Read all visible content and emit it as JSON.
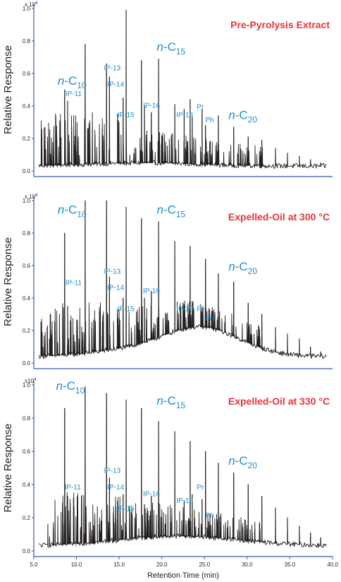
{
  "chart_data": [
    {
      "type": "line",
      "title": "Pre-Pyrolysis Extract",
      "ylabel": "Relative Response",
      "y_exponent": "x 10",
      "y_exponent_power": "4",
      "ylim": [
        0.0,
        1.0
      ],
      "y_ticks": [
        "0.0",
        "0.2",
        "0.4",
        "0.6",
        "0.8",
        "1.0"
      ],
      "xlim": [
        5.0,
        40.0
      ],
      "title_color": "#e8343b",
      "trace_color": "#231f20",
      "annotation_color": "#1f8dd0",
      "peaks": [
        {
          "x": 8.6,
          "y": 0.5
        },
        {
          "x": 8.95,
          "y": 0.43
        },
        {
          "x": 11.0,
          "y": 0.78
        },
        {
          "x": 13.5,
          "y": 0.66
        },
        {
          "x": 13.85,
          "y": 0.58
        },
        {
          "x": 14.8,
          "y": 0.35
        },
        {
          "x": 15.45,
          "y": 0.45
        },
        {
          "x": 15.8,
          "y": 0.99
        },
        {
          "x": 17.6,
          "y": 0.68
        },
        {
          "x": 17.95,
          "y": 0.4
        },
        {
          "x": 18.75,
          "y": 0.36
        },
        {
          "x": 19.6,
          "y": 0.69
        },
        {
          "x": 21.5,
          "y": 0.41
        },
        {
          "x": 22.6,
          "y": 0.38
        },
        {
          "x": 23.3,
          "y": 0.44
        },
        {
          "x": 23.55,
          "y": 0.33
        },
        {
          "x": 24.7,
          "y": 0.38
        },
        {
          "x": 25.1,
          "y": 0.28
        },
        {
          "x": 26.6,
          "y": 0.34
        },
        {
          "x": 28.4,
          "y": 0.27
        },
        {
          "x": 30.1,
          "y": 0.21
        },
        {
          "x": 31.7,
          "y": 0.19
        },
        {
          "x": 33.3,
          "y": 0.14
        },
        {
          "x": 34.7,
          "y": 0.11
        },
        {
          "x": 36.1,
          "y": 0.09
        },
        {
          "x": 37.4,
          "y": 0.07
        },
        {
          "x": 38.6,
          "y": 0.05
        }
      ],
      "annotations": [
        {
          "label": "n-C",
          "sub": "10",
          "x": 7.8,
          "y": 0.53,
          "size": "big"
        },
        {
          "label": "IP-11",
          "x": 8.7,
          "y": 0.46,
          "size": "small"
        },
        {
          "label": "IP-13",
          "x": 13.2,
          "y": 0.62,
          "size": "small"
        },
        {
          "label": "IP-14",
          "x": 13.6,
          "y": 0.52,
          "size": "small"
        },
        {
          "label": "n-C",
          "sub": "15",
          "x": 19.4,
          "y": 0.74,
          "size": "big"
        },
        {
          "label": "IP-15",
          "x": 14.8,
          "y": 0.33,
          "size": "small"
        },
        {
          "label": "IP-16",
          "x": 17.8,
          "y": 0.39,
          "size": "small"
        },
        {
          "label": "IP-18",
          "x": 21.7,
          "y": 0.33,
          "size": "small"
        },
        {
          "label": "Pr",
          "x": 24.1,
          "y": 0.38,
          "size": "small"
        },
        {
          "label": "Ph",
          "x": 25.1,
          "y": 0.3,
          "size": "small"
        },
        {
          "label": "n-C",
          "sub": "20",
          "x": 27.8,
          "y": 0.32,
          "size": "big"
        }
      ]
    },
    {
      "type": "line",
      "title": "Expelled-Oil at 300 °C",
      "ylabel": "Relative Response",
      "y_exponent": "x 10",
      "y_exponent_power": "4",
      "ylim": [
        0.0,
        1.0
      ],
      "y_ticks": [
        "0.0",
        "0.2",
        "0.4",
        "0.6",
        "0.8",
        "1.0"
      ],
      "xlim": [
        5.0,
        40.0
      ],
      "title_color": "#e8343b",
      "trace_color": "#231f20",
      "annotation_color": "#1f8dd0",
      "peaks": [
        {
          "x": 8.6,
          "y": 0.8
        },
        {
          "x": 8.95,
          "y": 0.35
        },
        {
          "x": 11.0,
          "y": 1.0
        },
        {
          "x": 13.5,
          "y": 1.0
        },
        {
          "x": 13.85,
          "y": 0.53
        },
        {
          "x": 14.8,
          "y": 0.33
        },
        {
          "x": 15.45,
          "y": 0.4
        },
        {
          "x": 15.8,
          "y": 0.96
        },
        {
          "x": 17.6,
          "y": 0.89
        },
        {
          "x": 17.95,
          "y": 0.4
        },
        {
          "x": 18.75,
          "y": 0.44
        },
        {
          "x": 19.6,
          "y": 0.87
        },
        {
          "x": 21.5,
          "y": 0.75
        },
        {
          "x": 22.6,
          "y": 0.36
        },
        {
          "x": 23.3,
          "y": 0.72
        },
        {
          "x": 23.55,
          "y": 0.38
        },
        {
          "x": 24.7,
          "y": 0.34
        },
        {
          "x": 25.1,
          "y": 0.64
        },
        {
          "x": 26.6,
          "y": 0.55
        },
        {
          "x": 28.4,
          "y": 0.5
        },
        {
          "x": 30.1,
          "y": 0.37
        },
        {
          "x": 31.7,
          "y": 0.3
        },
        {
          "x": 33.3,
          "y": 0.22
        },
        {
          "x": 34.7,
          "y": 0.18
        },
        {
          "x": 36.1,
          "y": 0.15
        },
        {
          "x": 37.4,
          "y": 0.1
        },
        {
          "x": 38.6,
          "y": 0.07
        }
      ],
      "annotations": [
        {
          "label": "n-C",
          "sub": "10",
          "x": 7.8,
          "y": 0.92,
          "size": "big"
        },
        {
          "label": "IP-11",
          "x": 8.7,
          "y": 0.48,
          "size": "small"
        },
        {
          "label": "IP-13",
          "x": 13.2,
          "y": 0.55,
          "size": "small"
        },
        {
          "label": "IP-14",
          "x": 13.6,
          "y": 0.45,
          "size": "small"
        },
        {
          "label": "n-C",
          "sub": "15",
          "x": 19.4,
          "y": 0.92,
          "size": "big"
        },
        {
          "label": "IP-15",
          "x": 14.8,
          "y": 0.32,
          "size": "small"
        },
        {
          "label": "IP-16",
          "x": 17.8,
          "y": 0.43,
          "size": "small"
        },
        {
          "label": "IP-18",
          "x": 21.7,
          "y": 0.32,
          "size": "small"
        },
        {
          "label": "Pr",
          "x": 24.1,
          "y": 0.32,
          "size": "small"
        },
        {
          "label": "Ph",
          "x": 25.1,
          "y": 0.26,
          "size": "small"
        },
        {
          "label": "n-C",
          "sub": "20",
          "x": 27.8,
          "y": 0.57,
          "size": "big"
        }
      ]
    },
    {
      "type": "line",
      "title": "Expelled-Oil at 330 °C",
      "ylabel": "Relative Response",
      "y_exponent": "x10",
      "y_exponent_power": "4",
      "ylim": [
        0.0,
        1.0
      ],
      "y_ticks": [
        "0.0",
        "0.2",
        "0.4",
        "0.6",
        "0.8",
        "1.0"
      ],
      "xlim": [
        5.0,
        40.0
      ],
      "x_ticks": [
        "5.0",
        "10.0",
        "15.0",
        "20.0",
        "25.0",
        "30.0",
        "35.0",
        "40.0"
      ],
      "xlabel": "Retention Time (min)",
      "title_color": "#e8343b",
      "trace_color": "#231f20",
      "annotation_color": "#1f8dd0",
      "peaks": [
        {
          "x": 8.6,
          "y": 0.86
        },
        {
          "x": 8.95,
          "y": 0.33
        },
        {
          "x": 11.0,
          "y": 0.99
        },
        {
          "x": 13.5,
          "y": 0.95
        },
        {
          "x": 13.85,
          "y": 0.44
        },
        {
          "x": 14.8,
          "y": 0.3
        },
        {
          "x": 15.45,
          "y": 0.34
        },
        {
          "x": 15.8,
          "y": 0.91
        },
        {
          "x": 17.6,
          "y": 0.86
        },
        {
          "x": 17.95,
          "y": 0.28
        },
        {
          "x": 18.75,
          "y": 0.33
        },
        {
          "x": 19.6,
          "y": 0.78
        },
        {
          "x": 21.5,
          "y": 0.72
        },
        {
          "x": 22.6,
          "y": 0.3
        },
        {
          "x": 23.3,
          "y": 0.66
        },
        {
          "x": 23.55,
          "y": 0.34
        },
        {
          "x": 24.7,
          "y": 0.31
        },
        {
          "x": 25.1,
          "y": 0.6
        },
        {
          "x": 26.6,
          "y": 0.53
        },
        {
          "x": 28.4,
          "y": 0.47
        },
        {
          "x": 30.1,
          "y": 0.4
        },
        {
          "x": 31.7,
          "y": 0.33
        },
        {
          "x": 33.3,
          "y": 0.26
        },
        {
          "x": 34.7,
          "y": 0.2
        },
        {
          "x": 36.1,
          "y": 0.15
        },
        {
          "x": 37.4,
          "y": 0.11
        },
        {
          "x": 38.6,
          "y": 0.08
        }
      ],
      "annotations": [
        {
          "label": "n-C",
          "sub": "10",
          "x": 7.6,
          "y": 0.97,
          "size": "big"
        },
        {
          "label": "IP-13",
          "x": 13.2,
          "y": 0.47,
          "size": "small"
        },
        {
          "label": "IP-11",
          "x": 8.6,
          "y": 0.37,
          "size": "small"
        },
        {
          "label": "IP-14",
          "x": 13.6,
          "y": 0.37,
          "size": "small"
        },
        {
          "label": "n-C",
          "sub": "15",
          "x": 19.4,
          "y": 0.88,
          "size": "big"
        },
        {
          "label": "IP-15",
          "x": 14.8,
          "y": 0.24,
          "size": "small"
        },
        {
          "label": "IP-16",
          "x": 17.8,
          "y": 0.33,
          "size": "small"
        },
        {
          "label": "IP-18",
          "x": 21.7,
          "y": 0.29,
          "size": "small"
        },
        {
          "label": "Pr",
          "x": 24.1,
          "y": 0.37,
          "size": "small"
        },
        {
          "label": "Ph",
          "x": 25.1,
          "y": 0.2,
          "size": "small"
        },
        {
          "label": "n-C",
          "sub": "20",
          "x": 27.8,
          "y": 0.52,
          "size": "big"
        }
      ]
    }
  ]
}
